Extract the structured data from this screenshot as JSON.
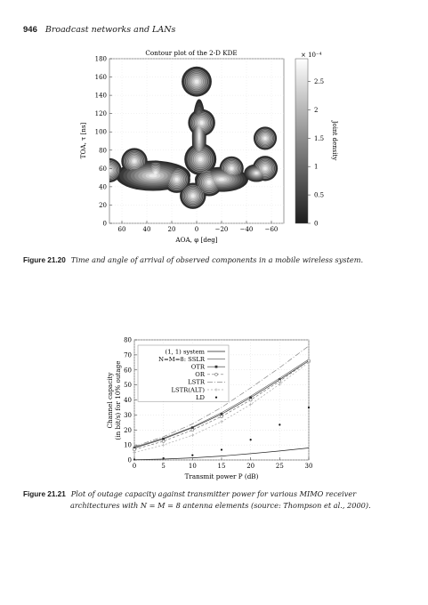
{
  "header": {
    "page_number": "946",
    "running_title": "Broadcast networks and LANs"
  },
  "figure1": {
    "title": "Contour plot of the 2-D KDE",
    "xlabel": "AOA, φ [deg]",
    "ylabel": "TOA, τ [ns]",
    "x_ticks": [
      "60",
      "40",
      "20",
      "0",
      "−20",
      "−40",
      "−60"
    ],
    "y_ticks": [
      "0",
      "20",
      "40",
      "60",
      "80",
      "100",
      "120",
      "140",
      "160",
      "180"
    ],
    "colorbar_label": "Joint density",
    "colorbar_exponent": "× 10⁻⁴",
    "colorbar_ticks": [
      "0",
      "0.5",
      "1",
      "1.5",
      "2",
      "2.5"
    ],
    "caption_label": "Figure 21.20",
    "caption": "Time and angle of arrival of observed components in a mobile wireless system."
  },
  "figure2": {
    "xlabel": "Transmit power P (dB)",
    "ylabel_line1": "Channel capacity",
    "ylabel_line2": "(in bit/s) for 10% outage",
    "caption_label": "Figure 21.21",
    "caption_line1": "Plot of outage capacity against transmitter power for various MIMO receiver",
    "caption_line2": "architectures with N = M = 8 antenna elements (source: Thompson et al., 2000)."
  },
  "chart_data": [
    {
      "type": "heatmap",
      "title": "Contour plot of the 2-D KDE",
      "xlabel": "AOA, φ [deg]",
      "ylabel": "TOA, τ [ns]",
      "xlim": [
        70,
        -70
      ],
      "ylim": [
        0,
        180
      ],
      "x_ticks": [
        60,
        40,
        20,
        0,
        -20,
        -40,
        -60
      ],
      "y_ticks": [
        0,
        20,
        40,
        60,
        80,
        100,
        120,
        140,
        160,
        180
      ],
      "colorbar": {
        "label": "Joint density",
        "scale": "× 10⁻⁴",
        "range": [
          0,
          2.9
        ],
        "ticks": [
          0,
          0.5,
          1,
          1.5,
          2,
          2.5
        ]
      },
      "peaks": [
        {
          "aoa": 70,
          "toa": 58,
          "density": 1.2
        },
        {
          "aoa": 50,
          "toa": 68,
          "density": 1.4
        },
        {
          "aoa": 33,
          "toa": 55,
          "density": 1.3
        },
        {
          "aoa": 16,
          "toa": 48,
          "density": 1.5
        },
        {
          "aoa": 0,
          "toa": 155,
          "density": 1.8
        },
        {
          "aoa": -4,
          "toa": 110,
          "density": 1.5
        },
        {
          "aoa": -3,
          "toa": 70,
          "density": 2.0
        },
        {
          "aoa": 3,
          "toa": 30,
          "density": 1.4
        },
        {
          "aoa": -10,
          "toa": 45,
          "density": 1.6
        },
        {
          "aoa": -28,
          "toa": 60,
          "density": 1.2
        },
        {
          "aoa": -55,
          "toa": 93,
          "density": 1.1
        },
        {
          "aoa": -55,
          "toa": 60,
          "density": 1.3
        }
      ]
    },
    {
      "type": "line",
      "xlabel": "Transmit power P (dB)",
      "ylabel": "Channel capacity (in bit/s) for 10% outage",
      "xlim": [
        0,
        30
      ],
      "ylim": [
        0,
        80
      ],
      "x_ticks": [
        0,
        5,
        10,
        15,
        20,
        25,
        30
      ],
      "y_ticks": [
        0,
        10,
        20,
        30,
        40,
        50,
        60,
        70,
        80
      ],
      "legend_position": "top-left",
      "x": [
        0,
        5,
        10,
        15,
        20,
        25,
        30
      ],
      "series": [
        {
          "name": "(1, 1) system",
          "values": [
            0.2,
            0.6,
            1.4,
            2.6,
            4.2,
            6.0,
            8.0
          ],
          "color": "#222222",
          "dash": "",
          "marker": "none"
        },
        {
          "name": "N=M=8: SSLR",
          "values": [
            8.5,
            14.5,
            22.0,
            31.5,
            42.5,
            54.5,
            67.0
          ],
          "color": "#666666",
          "dash": "",
          "marker": "none"
        },
        {
          "name": "OTR",
          "values": [
            8.0,
            14.0,
            21.5,
            30.5,
            41.5,
            53.5,
            66.0
          ],
          "color": "#333333",
          "dash": "",
          "marker": "square"
        },
        {
          "name": "OR",
          "values": [
            7.0,
            12.5,
            20.0,
            29.0,
            40.0,
            52.5,
            66.0
          ],
          "color": "#777777",
          "dash": "3,2",
          "marker": "circle"
        },
        {
          "name": "LSTR",
          "values": [
            9.0,
            15.5,
            24.0,
            35.0,
            48.0,
            61.5,
            76.0
          ],
          "color": "#888888",
          "dash": "6,2,1,2",
          "marker": "none"
        },
        {
          "name": "LSTR(ALT)",
          "values": [
            5.0,
            10.0,
            16.5,
            25.5,
            37.0,
            50.5,
            65.0
          ],
          "color": "#aaaaaa",
          "dash": "2,2",
          "marker": "plus"
        },
        {
          "name": "LD",
          "values": [
            0.3,
            1.2,
            3.2,
            6.8,
            13.5,
            23.5,
            35.0
          ],
          "color": "#999999",
          "dash": "1,2",
          "marker": "dot"
        }
      ]
    }
  ]
}
